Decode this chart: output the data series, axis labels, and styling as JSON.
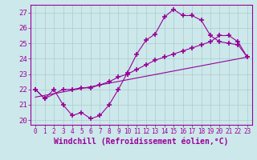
{
  "xlabel": "Windchill (Refroidissement éolien,°C)",
  "bg_color": "#cce8ea",
  "line_color": "#990099",
  "xlim": [
    -0.5,
    23.5
  ],
  "ylim": [
    19.7,
    27.5
  ],
  "yticks": [
    20,
    21,
    22,
    23,
    24,
    25,
    26,
    27
  ],
  "xticks": [
    0,
    1,
    2,
    3,
    4,
    5,
    6,
    7,
    8,
    9,
    10,
    11,
    12,
    13,
    14,
    15,
    16,
    17,
    18,
    19,
    20,
    21,
    22,
    23
  ],
  "line1_x": [
    0,
    1,
    2,
    3,
    4,
    5,
    6,
    7,
    8,
    9,
    10,
    11,
    12,
    13,
    14,
    15,
    16,
    17,
    18,
    19,
    20,
    21,
    22,
    23
  ],
  "line1_y": [
    22.0,
    21.4,
    22.0,
    21.0,
    20.3,
    20.5,
    20.1,
    20.3,
    21.0,
    22.0,
    23.1,
    24.3,
    25.2,
    25.6,
    26.7,
    27.2,
    26.8,
    26.8,
    26.5,
    25.5,
    25.1,
    25.0,
    24.9,
    24.1
  ],
  "line2_x": [
    0,
    1,
    3,
    4,
    5,
    6,
    7,
    8,
    9,
    10,
    11,
    12,
    13,
    14,
    15,
    16,
    17,
    18,
    19,
    20,
    21,
    22,
    23
  ],
  "line2_y": [
    22.0,
    21.4,
    22.0,
    22.0,
    22.1,
    22.1,
    22.3,
    22.5,
    22.8,
    23.0,
    23.3,
    23.6,
    23.9,
    24.1,
    24.3,
    24.5,
    24.7,
    24.9,
    25.1,
    25.5,
    25.5,
    25.1,
    24.1
  ],
  "line3_x": [
    0,
    23
  ],
  "line3_y": [
    21.5,
    24.1
  ],
  "grid_color": "#aacccc"
}
